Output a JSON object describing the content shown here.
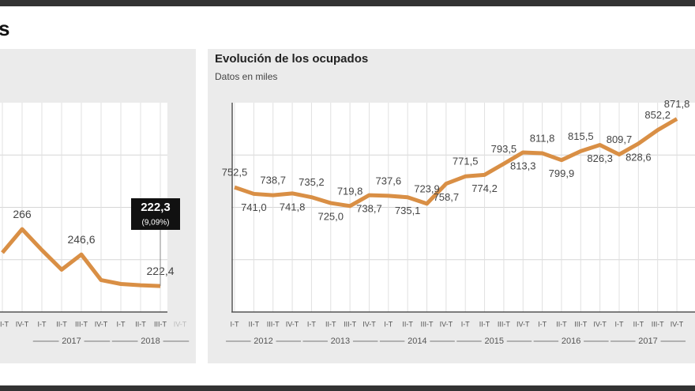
{
  "header": {
    "title": "s"
  },
  "chart_data": [
    {
      "type": "line",
      "color": "#d98f45",
      "categories": [
        "III-T",
        "IV-T",
        "I-T",
        "II-T",
        "III-T",
        "IV-T",
        "I-T",
        "II-T",
        "III-T",
        "IV-T"
      ],
      "years": [
        null,
        null,
        "2017",
        "2017",
        "2017",
        "2017",
        "2018",
        "2018",
        "2018",
        "2018"
      ],
      "values": [
        248,
        266,
        250,
        235,
        246.6,
        227,
        224,
        223,
        222.4,
        null
      ],
      "value_labels": [
        null,
        "266",
        null,
        null,
        "246,6",
        null,
        null,
        null,
        "222,4",
        null
      ],
      "ylim": [
        202.5,
        363
      ],
      "annotations": [
        "222,3",
        "(9,09%)"
      ]
    },
    {
      "type": "line",
      "title": "Evolución de los ocupados",
      "subtitle": "Datos en miles",
      "color": "#d98f45",
      "categories": [
        "I-T",
        "II-T",
        "III-T",
        "IV-T",
        "I-T",
        "II-T",
        "III-T",
        "IV-T",
        "I-T",
        "II-T",
        "III-T",
        "IV-T",
        "I-T",
        "II-T",
        "III-T",
        "IV-T",
        "I-T",
        "II-T",
        "III-T",
        "IV-T",
        "I-T",
        "II-T",
        "III-T",
        "IV-T"
      ],
      "years": [
        "2012",
        "2012",
        "2012",
        "2012",
        "2013",
        "2013",
        "2013",
        "2013",
        "2014",
        "2014",
        "2014",
        "2014",
        "2015",
        "2015",
        "2015",
        "2015",
        "2016",
        "2016",
        "2016",
        "2016",
        "2017",
        "2017",
        "2017",
        "2017"
      ],
      "values": [
        752.5,
        741.0,
        738.7,
        741.8,
        735.2,
        725.0,
        719.8,
        738.7,
        737.6,
        735.1,
        723.9,
        758.7,
        771.5,
        774.2,
        793.5,
        813.3,
        811.8,
        799.9,
        815.5,
        826.3,
        809.7,
        828.6,
        852.2,
        871.8
      ],
      "value_labels": [
        "752,5",
        "741,0",
        "738,7",
        "741,8",
        "735,2",
        "725,0",
        "719,8",
        "738,7",
        "737,6",
        "735,1",
        "723,9",
        "758,7",
        "771,5",
        "774,2",
        "793,5",
        "813,3",
        "811,8",
        "799,9",
        "815,5",
        "826,3",
        "809,7",
        "828,6",
        "852,2",
        "871,8"
      ],
      "ylim": [
        535,
        900
      ]
    }
  ]
}
